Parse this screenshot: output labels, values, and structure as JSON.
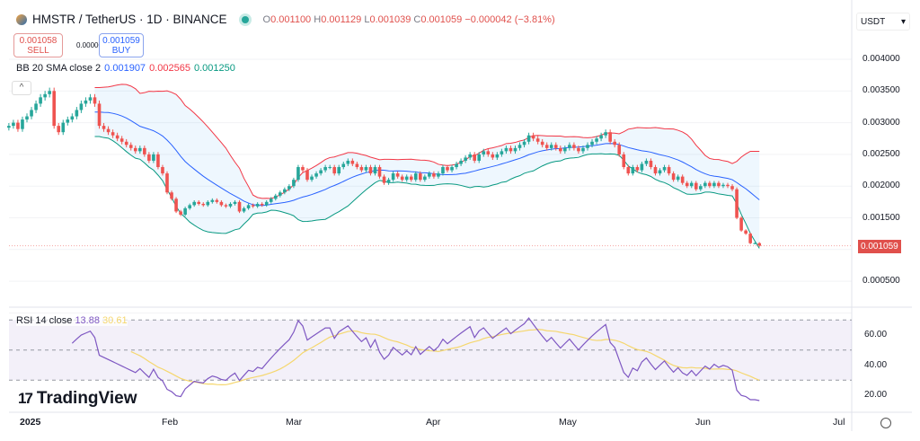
{
  "header": {
    "symbol": "HMSTR / TetherUS · 1D · BINANCE",
    "open_label": "O",
    "open": "0.001100",
    "high_label": "H",
    "high": "0.001129",
    "low_label": "L",
    "low": "0.001039",
    "close_label": "C",
    "close": "0.001059",
    "change": "−0.000042 (−3.81%)"
  },
  "trade": {
    "sell_price": "0.001058",
    "sell_label": "SELL",
    "spread": "0.000001",
    "buy_price": "0.001059",
    "buy_label": "BUY"
  },
  "bb_legend": {
    "label": "BB 20 SMA close 2",
    "basis": "0.001907",
    "upper": "0.002565",
    "lower": "0.001250"
  },
  "rsi_legend": {
    "label": "RSI 14 close",
    "rsi": "13.88",
    "ma": "30.61"
  },
  "currency": "USDT",
  "logo": "TradingView",
  "last_price": "0.001059",
  "colors": {
    "up": "#26a69a",
    "down": "#ef5350",
    "bb_basis": "#2962ff",
    "bb_upper": "#f23645",
    "bb_lower": "#089981",
    "rsi": "#7e57c2",
    "rsi_ma": "#f5d76e"
  },
  "chart_data": {
    "type": "candlestick",
    "price_axis": {
      "ticks": [
        "0.004000",
        "0.003500",
        "0.003000",
        "0.002500",
        "0.002000",
        "0.001500",
        "0.000500"
      ],
      "range": [
        0.00016,
        0.0046
      ]
    },
    "rsi_axis": {
      "ticks": [
        "60.00",
        "40.00",
        "20.00"
      ],
      "range": [
        10,
        80
      ],
      "bands": [
        70,
        50,
        30
      ]
    },
    "time_axis": {
      "ticks": [
        "2025",
        "Feb",
        "Mar",
        "Apr",
        "May",
        "Jun",
        "Jul"
      ]
    },
    "daily_close": [
      {
        "month": "2024-12",
        "from_day": 28,
        "values": [
          0.00295,
          0.003,
          0.0029,
          0.00305
        ]
      },
      {
        "month": "2025-01",
        "from_day": 1,
        "values": [
          0.0031,
          0.0032,
          0.0033,
          0.0034,
          0.00345,
          0.0035,
          0.00295,
          0.00285,
          0.003,
          0.00305,
          0.0031,
          0.0032,
          0.0033,
          0.00335,
          0.0034,
          0.0033,
          0.00295,
          0.0029,
          0.00285,
          0.0028,
          0.00275,
          0.0027,
          0.00265,
          0.0026,
          0.00255,
          0.0026,
          0.0025,
          0.0024,
          0.0025,
          0.0023,
          0.0022
        ]
      },
      {
        "month": "2025-02",
        "from_day": 1,
        "values": [
          0.0019,
          0.0018,
          0.0016,
          0.00155,
          0.00165,
          0.0017,
          0.00175,
          0.00172,
          0.0017,
          0.00175,
          0.00178,
          0.00175,
          0.0017,
          0.00168,
          0.00172,
          0.00175,
          0.0016,
          0.00165,
          0.0017,
          0.00168,
          0.00172,
          0.0017,
          0.00175,
          0.0018,
          0.00185,
          0.0019,
          0.00195,
          0.002
        ]
      },
      {
        "month": "2025-03",
        "from_day": 1,
        "values": [
          0.0021,
          0.0023,
          0.00225,
          0.0021,
          0.00215,
          0.0022,
          0.00225,
          0.0023,
          0.0023,
          0.0022,
          0.0023,
          0.00235,
          0.0024,
          0.00235,
          0.0023,
          0.00225,
          0.0023,
          0.0022,
          0.0023,
          0.00215,
          0.00205,
          0.0021,
          0.0022,
          0.00215,
          0.0021,
          0.00215,
          0.0021,
          0.0022,
          0.0021,
          0.00215,
          0.0022
        ]
      },
      {
        "month": "2025-04",
        "from_day": 1,
        "values": [
          0.00215,
          0.0022,
          0.0023,
          0.00225,
          0.0023,
          0.00235,
          0.0024,
          0.00245,
          0.0025,
          0.0024,
          0.0025,
          0.00255,
          0.0025,
          0.00245,
          0.0025,
          0.00255,
          0.0026,
          0.00255,
          0.0026,
          0.00265,
          0.0027,
          0.0028,
          0.00275,
          0.0027,
          0.00265,
          0.0026,
          0.00265,
          0.0026,
          0.00255,
          0.0026
        ]
      },
      {
        "month": "2025-05",
        "from_day": 1,
        "values": [
          0.00265,
          0.0026,
          0.00255,
          0.0026,
          0.00265,
          0.0027,
          0.00275,
          0.0028,
          0.00285,
          0.0027,
          0.00265,
          0.0025,
          0.0023,
          0.0022,
          0.0023,
          0.00225,
          0.00235,
          0.0024,
          0.0023,
          0.0022,
          0.00225,
          0.0023,
          0.0022,
          0.0021,
          0.00215,
          0.00205,
          0.002,
          0.00205,
          0.00195,
          0.002,
          0.00205
        ]
      },
      {
        "month": "2025-06",
        "from_day": 1,
        "values": [
          0.002,
          0.00205,
          0.002,
          0.00202,
          0.002,
          0.00195,
          0.0015,
          0.0013,
          0.00125,
          0.0011,
          0.0011,
          0.001059
        ]
      }
    ]
  }
}
